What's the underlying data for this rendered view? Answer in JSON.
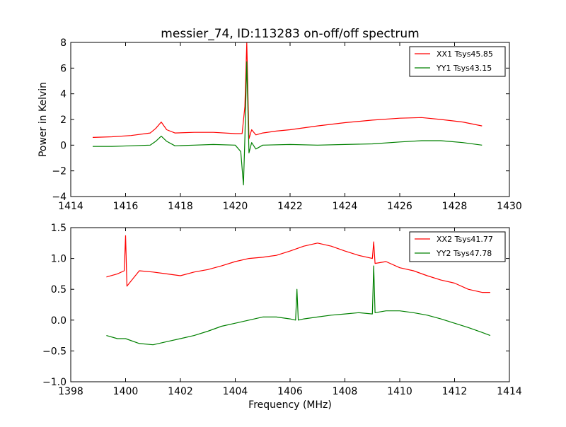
{
  "colors": {
    "xx": "#ff0000",
    "yy": "#008000",
    "axis": "#000000",
    "background": "#ffffff"
  },
  "chart_data": [
    {
      "type": "line",
      "title": "messier_74, ID:113283 on-off/off spectrum",
      "xlabel": "",
      "ylabel": "Power in Kelvin",
      "xlim": [
        1414,
        1430
      ],
      "ylim": [
        -4,
        8
      ],
      "xticks": [
        "1414",
        "1416",
        "1418",
        "1420",
        "1422",
        "1424",
        "1426",
        "1428",
        "1430"
      ],
      "yticks": [
        "−4",
        "−2",
        "0",
        "2",
        "4",
        "6",
        "8"
      ],
      "grid": false,
      "legend_position": "top-right",
      "series": [
        {
          "name": "XX1 Tsys45.85",
          "color": "#ff0000",
          "x": [
            1414.8,
            1415.5,
            1416.2,
            1416.9,
            1417.1,
            1417.3,
            1417.5,
            1417.8,
            1418.5,
            1419.2,
            1420.0,
            1420.25,
            1420.35,
            1420.42,
            1420.5,
            1420.6,
            1420.75,
            1421.0,
            1421.5,
            1422.0,
            1423.0,
            1424.0,
            1425.0,
            1426.0,
            1426.8,
            1427.5,
            1428.3,
            1429.0
          ],
          "y": [
            0.6,
            0.65,
            0.75,
            0.95,
            1.3,
            1.8,
            1.2,
            0.95,
            1.0,
            1.0,
            0.9,
            0.9,
            3.0,
            8.0,
            0.5,
            1.2,
            0.8,
            0.95,
            1.1,
            1.2,
            1.5,
            1.75,
            1.95,
            2.1,
            2.15,
            2.0,
            1.8,
            1.5
          ]
        },
        {
          "name": "YY1 Tsys43.15",
          "color": "#008000",
          "x": [
            1414.8,
            1415.5,
            1416.2,
            1416.9,
            1417.1,
            1417.3,
            1417.5,
            1417.8,
            1418.5,
            1419.2,
            1420.0,
            1420.2,
            1420.3,
            1420.35,
            1420.42,
            1420.5,
            1420.6,
            1420.75,
            1421.0,
            1422.0,
            1423.0,
            1424.0,
            1425.0,
            1426.0,
            1426.8,
            1427.5,
            1428.3,
            1429.0
          ],
          "y": [
            -0.1,
            -0.1,
            -0.05,
            0.0,
            0.3,
            0.7,
            0.3,
            -0.05,
            0.0,
            0.05,
            0.0,
            -0.5,
            -3.1,
            0.5,
            6.5,
            -0.6,
            0.2,
            -0.3,
            0.0,
            0.05,
            0.0,
            0.05,
            0.1,
            0.25,
            0.35,
            0.35,
            0.2,
            0.0
          ]
        }
      ]
    },
    {
      "type": "line",
      "title": "",
      "xlabel": "Frequency (MHz)",
      "ylabel": "",
      "xlim": [
        1398,
        1414
      ],
      "ylim": [
        -1.0,
        1.5
      ],
      "xticks": [
        "1398",
        "1400",
        "1402",
        "1404",
        "1406",
        "1408",
        "1410",
        "1412",
        "1414"
      ],
      "yticks": [
        "−1.0",
        "−0.5",
        "0.0",
        "0.5",
        "1.0",
        "1.5"
      ],
      "grid": false,
      "legend_position": "top-right",
      "series": [
        {
          "name": "XX2 Tsys41.77",
          "color": "#ff0000",
          "x": [
            1399.3,
            1399.7,
            1399.95,
            1400.0,
            1400.05,
            1400.5,
            1401.0,
            1401.5,
            1402.0,
            1402.5,
            1403.0,
            1403.5,
            1404.0,
            1404.5,
            1405.0,
            1405.5,
            1406.0,
            1406.5,
            1407.0,
            1407.5,
            1408.0,
            1408.5,
            1409.0,
            1409.05,
            1409.1,
            1409.5,
            1410.0,
            1410.5,
            1411.0,
            1411.5,
            1412.0,
            1412.5,
            1413.0,
            1413.3
          ],
          "y": [
            0.7,
            0.75,
            0.8,
            1.37,
            0.55,
            0.8,
            0.78,
            0.75,
            0.72,
            0.78,
            0.82,
            0.88,
            0.95,
            1.0,
            1.02,
            1.05,
            1.12,
            1.2,
            1.25,
            1.2,
            1.12,
            1.05,
            1.0,
            1.27,
            0.92,
            0.95,
            0.85,
            0.8,
            0.72,
            0.65,
            0.6,
            0.5,
            0.45,
            0.45
          ]
        },
        {
          "name": "YY2 Tsys47.78",
          "color": "#008000",
          "x": [
            1399.3,
            1399.7,
            1400.0,
            1400.5,
            1401.0,
            1401.5,
            1402.0,
            1402.5,
            1403.0,
            1403.5,
            1404.0,
            1404.5,
            1405.0,
            1405.5,
            1406.0,
            1406.2,
            1406.25,
            1406.3,
            1406.5,
            1407.0,
            1407.5,
            1408.0,
            1408.5,
            1409.0,
            1409.05,
            1409.1,
            1409.5,
            1410.0,
            1410.5,
            1411.0,
            1411.5,
            1412.0,
            1412.5,
            1413.0,
            1413.3
          ],
          "y": [
            -0.25,
            -0.3,
            -0.3,
            -0.38,
            -0.4,
            -0.35,
            -0.3,
            -0.25,
            -0.18,
            -0.1,
            -0.05,
            0.0,
            0.05,
            0.05,
            0.02,
            0.0,
            0.5,
            0.0,
            0.02,
            0.05,
            0.08,
            0.1,
            0.12,
            0.1,
            0.88,
            0.12,
            0.15,
            0.15,
            0.12,
            0.08,
            0.02,
            -0.05,
            -0.12,
            -0.2,
            -0.25
          ]
        }
      ]
    }
  ]
}
